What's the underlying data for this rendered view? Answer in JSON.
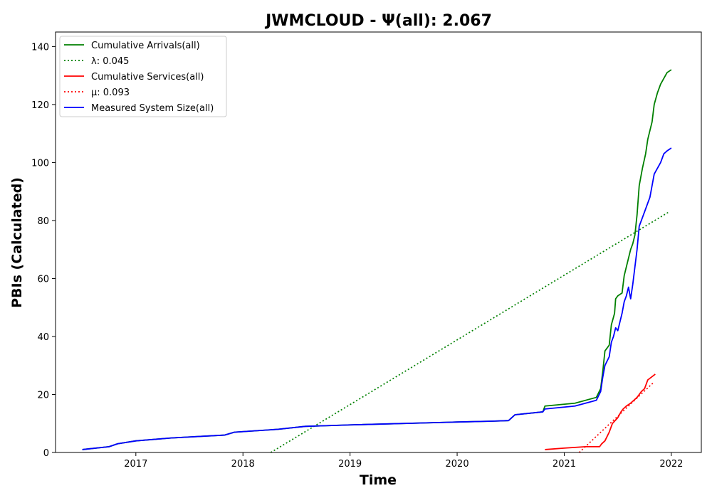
{
  "chart_data": {
    "type": "line",
    "title": "JWMCLOUD -  Ψ(all): 2.067",
    "xlabel": "Time",
    "ylabel": "PBIs (Calculated)",
    "xlim": [
      2016.25,
      2022.28
    ],
    "ylim": [
      0,
      145
    ],
    "x_ticks": [
      2017,
      2018,
      2019,
      2020,
      2021,
      2022
    ],
    "x_tick_labels": [
      "2017",
      "2018",
      "2019",
      "2020",
      "2021",
      "2022"
    ],
    "y_ticks": [
      0,
      20,
      40,
      60,
      80,
      100,
      120,
      140
    ],
    "y_tick_labels": [
      "0",
      "20",
      "40",
      "60",
      "80",
      "100",
      "120",
      "140"
    ],
    "grid": false,
    "legend_position": "top-left",
    "series": [
      {
        "name": "Cumulative Arrivals(all)",
        "color": "#008000",
        "style": "solid",
        "x": [
          2016.5,
          2016.75,
          2016.83,
          2017.0,
          2017.33,
          2017.83,
          2017.92,
          2018.33,
          2018.58,
          2018.75,
          2019.0,
          2020.0,
          2020.33,
          2020.48,
          2020.54,
          2020.8,
          2020.82,
          2021.1,
          2021.3,
          2021.34,
          2021.36,
          2021.38,
          2021.42,
          2021.44,
          2021.47,
          2021.48,
          2021.5,
          2021.54,
          2021.56,
          2021.6,
          2021.62,
          2021.64,
          2021.66,
          2021.68,
          2021.7,
          2021.73,
          2021.76,
          2021.78,
          2021.8,
          2021.82,
          2021.84,
          2021.87,
          2021.9,
          2021.93,
          2021.96,
          2022.0
        ],
        "y": [
          1,
          2,
          3,
          4,
          5,
          6,
          7,
          8,
          9,
          9.2,
          9.5,
          10.5,
          10.8,
          11,
          13,
          14,
          16,
          17,
          19,
          22,
          28,
          35,
          37,
          44,
          48,
          53,
          54,
          55,
          61,
          67,
          70,
          72,
          75,
          82,
          92,
          98,
          103,
          108,
          111,
          114,
          120,
          124,
          127,
          129,
          131,
          132
        ]
      },
      {
        "name": "λ: 0.045",
        "color": "#008000",
        "style": "dotted",
        "x": [
          2018.26,
          2021.98
        ],
        "y": [
          0,
          83
        ]
      },
      {
        "name": "Cumulative Services(all)",
        "color": "#ff0000",
        "style": "solid",
        "x": [
          2020.82,
          2021.0,
          2021.2,
          2021.33,
          2021.35,
          2021.38,
          2021.42,
          2021.45,
          2021.5,
          2021.53,
          2021.55,
          2021.58,
          2021.62,
          2021.65,
          2021.68,
          2021.7,
          2021.72,
          2021.75,
          2021.78,
          2021.85
        ],
        "y": [
          1,
          1.5,
          2,
          2,
          3,
          4,
          7,
          10,
          12,
          14,
          15,
          16,
          17,
          18,
          19,
          20,
          21,
          22,
          25,
          27
        ]
      },
      {
        "name": "μ: 0.093",
        "color": "#ff0000",
        "style": "dotted",
        "x": [
          2021.14,
          2021.83
        ],
        "y": [
          0,
          24
        ]
      },
      {
        "name": "Measured System Size(all)",
        "color": "#0000ff",
        "style": "solid",
        "x": [
          2016.5,
          2016.75,
          2016.83,
          2017.0,
          2017.33,
          2017.83,
          2017.92,
          2018.33,
          2018.58,
          2018.75,
          2019.0,
          2020.0,
          2020.33,
          2020.48,
          2020.54,
          2020.8,
          2020.82,
          2021.1,
          2021.3,
          2021.34,
          2021.36,
          2021.38,
          2021.42,
          2021.44,
          2021.46,
          2021.48,
          2021.5,
          2021.52,
          2021.54,
          2021.56,
          2021.58,
          2021.6,
          2021.62,
          2021.64,
          2021.66,
          2021.68,
          2021.7,
          2021.72,
          2021.74,
          2021.76,
          2021.78,
          2021.8,
          2021.82,
          2021.84,
          2021.87,
          2021.9,
          2021.93,
          2021.96,
          2022.0
        ],
        "y": [
          1,
          2,
          3,
          4,
          5,
          6,
          7,
          8,
          9,
          9.2,
          9.5,
          10.5,
          10.8,
          11,
          13,
          14,
          15,
          16,
          18,
          21,
          26,
          30,
          33,
          38,
          40,
          43,
          42,
          45,
          48,
          52,
          54,
          57,
          53,
          58,
          64,
          70,
          78,
          80,
          82,
          84,
          86,
          88,
          92,
          96,
          98,
          100,
          103,
          104,
          105
        ]
      }
    ]
  }
}
